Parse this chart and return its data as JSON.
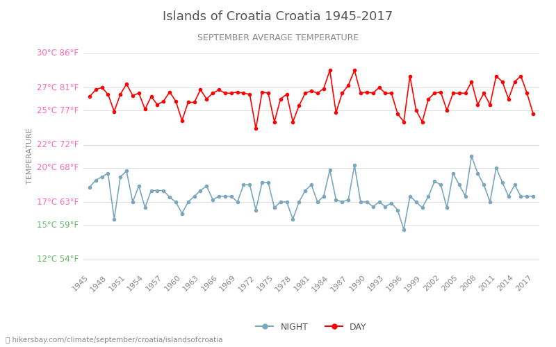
{
  "title": "Islands of Croatia Croatia 1945-2017",
  "subtitle": "SEPTEMBER AVERAGE TEMPERATURE",
  "ylabel": "TEMPERATURE",
  "footer": "ⓘ hikersbay.com/climate/september/croatia/islandsofcroatia",
  "years": [
    1945,
    1946,
    1947,
    1948,
    1949,
    1950,
    1951,
    1952,
    1953,
    1954,
    1955,
    1956,
    1957,
    1958,
    1959,
    1960,
    1961,
    1962,
    1963,
    1964,
    1965,
    1966,
    1967,
    1968,
    1969,
    1970,
    1971,
    1972,
    1973,
    1974,
    1975,
    1976,
    1977,
    1978,
    1979,
    1980,
    1981,
    1982,
    1983,
    1984,
    1985,
    1986,
    1987,
    1988,
    1989,
    1990,
    1991,
    1992,
    1993,
    1994,
    1995,
    1996,
    1997,
    1998,
    1999,
    2000,
    2001,
    2002,
    2003,
    2004,
    2005,
    2006,
    2007,
    2008,
    2009,
    2010,
    2011,
    2012,
    2013,
    2014,
    2015,
    2016,
    2017
  ],
  "day": [
    26.2,
    26.8,
    27.0,
    26.4,
    24.9,
    26.4,
    27.3,
    26.3,
    26.5,
    25.1,
    26.2,
    25.5,
    25.8,
    26.6,
    25.8,
    24.1,
    25.7,
    25.7,
    26.8,
    26.0,
    26.5,
    26.8,
    26.5,
    26.5,
    26.6,
    26.5,
    26.4,
    23.4,
    26.6,
    26.5,
    24.0,
    26.0,
    26.4,
    24.0,
    25.4,
    26.5,
    26.7,
    26.5,
    26.9,
    28.5,
    24.8,
    26.5,
    27.2,
    28.5,
    26.5,
    26.6,
    26.5,
    27.0,
    26.5,
    26.5,
    24.7,
    24.0,
    28.0,
    25.0,
    24.0,
    26.0,
    26.5,
    26.6,
    25.0,
    26.5,
    26.5,
    26.5,
    27.5,
    25.5,
    26.5,
    25.5,
    28.0,
    27.5,
    26.0,
    27.5,
    28.0,
    26.5,
    24.7
  ],
  "night": [
    18.3,
    18.9,
    19.2,
    19.5,
    15.5,
    19.2,
    19.7,
    17.0,
    18.4,
    16.5,
    18.0,
    18.0,
    18.0,
    17.4,
    17.0,
    16.0,
    17.0,
    17.5,
    18.0,
    18.4,
    17.2,
    17.5,
    17.5,
    17.5,
    17.0,
    18.5,
    18.5,
    16.3,
    18.7,
    18.7,
    16.5,
    17.0,
    17.0,
    15.5,
    17.0,
    18.0,
    18.5,
    17.0,
    17.5,
    19.8,
    17.2,
    17.0,
    17.2,
    20.2,
    17.0,
    17.0,
    16.6,
    17.0,
    16.6,
    16.9,
    16.3,
    14.6,
    17.5,
    17.0,
    16.5,
    17.5,
    18.8,
    18.5,
    16.5,
    19.5,
    18.5,
    17.5,
    21.0,
    19.5,
    18.5,
    17.0,
    20.0,
    18.7,
    17.5,
    18.5,
    17.5,
    17.5,
    17.5
  ],
  "day_color": "#ff0000",
  "night_color": "#7ba7bc",
  "bg_color": "#ffffff",
  "grid_color": "#e0e0e0",
  "title_color": "#555555",
  "subtitle_color": "#888888",
  "ylabel_color": "#888888",
  "pink_color": "#ff69b4",
  "green_color": "#66bb6a",
  "yticks_c": [
    12,
    15,
    17,
    20,
    22,
    25,
    27,
    30
  ],
  "yticks_f": [
    54,
    59,
    63,
    68,
    72,
    77,
    81,
    86
  ],
  "green_ticks": [
    12,
    15
  ],
  "ylim": [
    11,
    31
  ],
  "xlim": [
    1944,
    2018
  ]
}
